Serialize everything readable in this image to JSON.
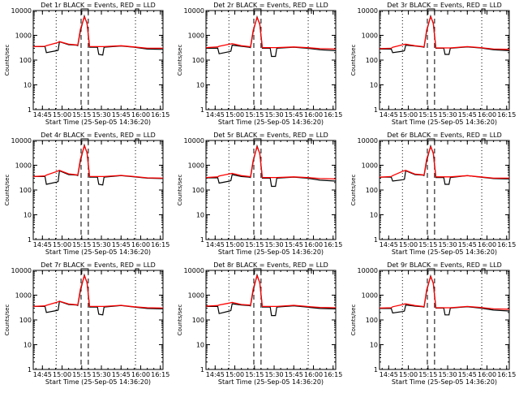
{
  "chart_data": {
    "type": "line",
    "shared": {
      "ylabel": "Counts/sec",
      "xlabel": "Start Time (25-Sep-05 14:36:20)",
      "yscale": "log",
      "ylim": [
        1,
        10000
      ],
      "yticks": [
        "1",
        "10",
        "100",
        "1000",
        "10000"
      ],
      "xlim": [
        "14:38",
        "16:17"
      ],
      "xticks": [
        "14:45",
        "15:00",
        "15:15",
        "15:30",
        "15:45",
        "16:00",
        "16:15"
      ],
      "dotted_lines": [
        "14:55.5",
        "15:56"
      ],
      "dashed_lines": [
        "15:14.5",
        "15:20"
      ],
      "series_colors": {
        "events": "#000000",
        "lld": "#ff0000"
      },
      "x": [
        "14:38",
        "14:47",
        "14:48",
        "14:56",
        "14:57",
        "14:58",
        "15:05",
        "15:11",
        "15:12",
        "15:14",
        "15:17",
        "15:19",
        "15:21",
        "15:27",
        "15:28",
        "15:31",
        "15:32",
        "15:45",
        "15:55",
        "16:05",
        "16:17"
      ]
    },
    "panels": [
      {
        "title": "Det 1r BLACK = Events, RED = LLD",
        "events": [
          350,
          350,
          200,
          240,
          250,
          550,
          420,
          400,
          380,
          1500,
          6000,
          3000,
          330,
          330,
          170,
          160,
          330,
          370,
          330,
          280,
          270
        ],
        "lld": [
          350,
          360,
          380,
          500,
          520,
          560,
          440,
          410,
          400,
          1800,
          5500,
          3200,
          350,
          350,
          350,
          350,
          350,
          380,
          340,
          300,
          300
        ]
      },
      {
        "title": "Det 2r BLACK = Events, RED = LLD",
        "events": [
          300,
          300,
          180,
          220,
          230,
          400,
          360,
          330,
          320,
          1400,
          5500,
          2800,
          300,
          300,
          140,
          140,
          300,
          330,
          300,
          260,
          240
        ],
        "lld": [
          320,
          340,
          360,
          440,
          450,
          460,
          380,
          350,
          340,
          1600,
          5200,
          3000,
          320,
          320,
          320,
          320,
          320,
          340,
          320,
          290,
          280
        ]
      },
      {
        "title": "Det 3r BLACK = Events, RED = LLD",
        "events": [
          280,
          280,
          200,
          230,
          240,
          400,
          370,
          340,
          330,
          1500,
          6000,
          3000,
          300,
          300,
          170,
          170,
          300,
          340,
          310,
          260,
          240
        ],
        "lld": [
          290,
          300,
          330,
          420,
          430,
          440,
          380,
          350,
          340,
          1700,
          5600,
          3200,
          310,
          310,
          310,
          310,
          310,
          350,
          320,
          280,
          270
        ]
      },
      {
        "title": "Det 4r BLACK = Events, RED = LLD",
        "events": [
          350,
          350,
          170,
          210,
          220,
          600,
          420,
          400,
          380,
          1500,
          6500,
          3200,
          330,
          330,
          170,
          160,
          330,
          380,
          340,
          300,
          290
        ],
        "lld": [
          350,
          370,
          400,
          560,
          600,
          620,
          450,
          410,
          400,
          1800,
          6000,
          3300,
          350,
          350,
          350,
          350,
          350,
          390,
          350,
          310,
          300
        ]
      },
      {
        "title": "Det 5r BLACK = Events, RED = LLD",
        "events": [
          310,
          310,
          190,
          230,
          240,
          420,
          350,
          330,
          320,
          1400,
          6000,
          3000,
          300,
          300,
          140,
          140,
          300,
          330,
          300,
          250,
          230
        ],
        "lld": [
          320,
          340,
          370,
          450,
          460,
          470,
          380,
          350,
          340,
          1600,
          5500,
          3100,
          320,
          320,
          320,
          320,
          320,
          340,
          320,
          290,
          280
        ]
      },
      {
        "title": "Det 6r BLACK = Events, RED = LLD",
        "events": [
          330,
          330,
          230,
          260,
          270,
          600,
          420,
          400,
          380,
          1500,
          6000,
          3000,
          320,
          320,
          170,
          170,
          320,
          380,
          330,
          290,
          280
        ],
        "lld": [
          330,
          350,
          380,
          580,
          600,
          620,
          440,
          410,
          400,
          1800,
          5500,
          3200,
          340,
          340,
          340,
          340,
          340,
          380,
          340,
          300,
          300
        ]
      },
      {
        "title": "Det 7r BLACK = Events, RED = LLD",
        "events": [
          350,
          350,
          200,
          240,
          250,
          560,
          420,
          400,
          380,
          1500,
          6500,
          3200,
          330,
          330,
          170,
          160,
          330,
          380,
          330,
          290,
          280
        ],
        "lld": [
          350,
          370,
          390,
          520,
          540,
          570,
          440,
          410,
          400,
          1800,
          6000,
          3300,
          350,
          350,
          350,
          350,
          350,
          390,
          340,
          310,
          300
        ]
      },
      {
        "title": "Det 8r BLACK = Events, RED = LLD",
        "events": [
          350,
          350,
          180,
          230,
          240,
          450,
          400,
          380,
          370,
          1500,
          6500,
          3200,
          330,
          330,
          150,
          150,
          330,
          370,
          330,
          290,
          280
        ],
        "lld": [
          360,
          380,
          400,
          480,
          500,
          510,
          420,
          400,
          390,
          1800,
          6000,
          3300,
          350,
          350,
          350,
          350,
          350,
          390,
          350,
          320,
          310
        ]
      },
      {
        "title": "Det 9r BLACK = Events, RED = LLD",
        "events": [
          290,
          290,
          190,
          220,
          230,
          400,
          360,
          340,
          330,
          1500,
          6000,
          3000,
          300,
          300,
          160,
          160,
          300,
          340,
          300,
          250,
          230
        ],
        "lld": [
          300,
          310,
          340,
          420,
          440,
          450,
          380,
          350,
          340,
          1700,
          5600,
          3100,
          310,
          310,
          310,
          310,
          310,
          350,
          320,
          280,
          270
        ]
      }
    ]
  }
}
